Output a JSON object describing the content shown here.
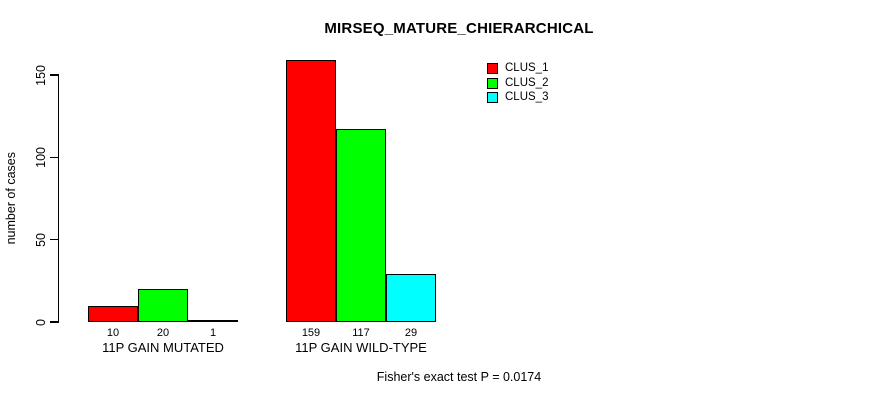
{
  "chart_data": {
    "type": "bar",
    "title": "MIRSEQ_MATURE_CHIERARCHICAL",
    "ylabel": "number of cases",
    "xlabel": "",
    "ylim": [
      0,
      150
    ],
    "yticks": [
      0,
      50,
      100,
      150
    ],
    "categories": [
      "11P GAIN MUTATED",
      "11P GAIN WILD-TYPE"
    ],
    "series": [
      {
        "name": "CLUS_1",
        "color": "#ff0000",
        "values": [
          10,
          159
        ]
      },
      {
        "name": "CLUS_2",
        "color": "#00ff00",
        "values": [
          20,
          117
        ]
      },
      {
        "name": "CLUS_3",
        "color": "#00ffff",
        "values": [
          1,
          29
        ]
      }
    ],
    "bar_value_labels": [
      [
        "10",
        "20",
        "1"
      ],
      [
        "159",
        "117",
        "29"
      ]
    ],
    "legend_position": "top-right",
    "legend_entries": [
      "CLUS_1",
      "CLUS_2",
      "CLUS_3"
    ],
    "annotation": "Fisher's exact test P = 0.0174",
    "grid": false,
    "colors": {
      "bar_border": "#000000",
      "axis": "#000000",
      "text": "#000000",
      "background": "#ffffff"
    }
  }
}
